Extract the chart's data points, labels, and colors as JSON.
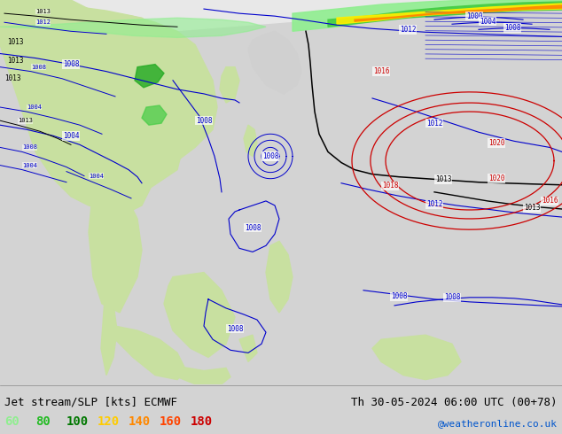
{
  "title_left": "Jet stream/SLP [kts] ECMWF",
  "title_right": "Th 30-05-2024 06:00 UTC (00+78)",
  "credit": "@weatheronline.co.uk",
  "legend_values": [
    "60",
    "80",
    "100",
    "120",
    "140",
    "160",
    "180"
  ],
  "legend_colors": [
    "#90ee90",
    "#22bb22",
    "#007700",
    "#ffcc00",
    "#ff8800",
    "#ff4400",
    "#cc0000"
  ],
  "bg_color": "#d3d3d3",
  "map_bg_white": "#ffffff",
  "map_bg_light": "#f0f0f0",
  "title_fontsize": 9,
  "credit_fontsize": 8,
  "legend_fontsize": 10,
  "land_color": "#c8e0a0",
  "ocean_color": "#f5f5f5",
  "green_jet_light": "#90ee90",
  "green_jet_mid": "#44bb44",
  "green_jet_dark": "#007700",
  "yellow_jet": "#ffee00",
  "orange_jet": "#ffaa00",
  "deep_orange_jet": "#ff6600",
  "blue_contour": "#0000cc",
  "red_contour": "#cc0000",
  "black_contour": "#000000"
}
